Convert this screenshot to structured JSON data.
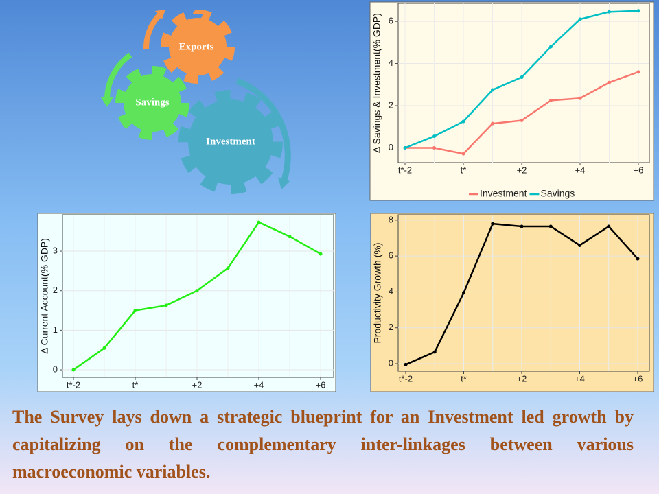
{
  "chart_data": [
    {
      "type": "line",
      "ylabel": "Δ Savings & Investment(% GDP)",
      "categories": [
        "t*-2",
        null,
        "t*",
        null,
        "+2",
        null,
        "+4",
        null,
        "+6"
      ],
      "series": [
        {
          "name": "Investment",
          "color": "#f8766d",
          "values": [
            0,
            0,
            -0.28,
            1.15,
            1.3,
            2.25,
            2.35,
            3.1,
            3.6
          ]
        },
        {
          "name": "Savings",
          "color": "#00bfc4",
          "values": [
            0,
            0.55,
            1.25,
            2.75,
            3.35,
            4.8,
            6.1,
            6.45,
            6.5
          ]
        }
      ],
      "ylim": [
        -0.7,
        6.85
      ],
      "yticks": [
        0,
        2,
        4,
        6
      ],
      "grid": true,
      "legend": "bottom",
      "background": "#fffbe8"
    },
    {
      "type": "line",
      "ylabel": "Δ Current Account(% GDP)",
      "categories": [
        "t*-2",
        null,
        "t*",
        null,
        "+2",
        null,
        "+4",
        null,
        "+6"
      ],
      "series": [
        {
          "name": "Current Account",
          "color": "#22ee11",
          "values": [
            0,
            0.55,
            1.5,
            1.63,
            2.0,
            2.57,
            3.73,
            3.37,
            2.93
          ]
        }
      ],
      "ylim": [
        -0.19,
        3.92
      ],
      "yticks": [
        0,
        1,
        2,
        3
      ],
      "grid": true,
      "background": "#f0ffff"
    },
    {
      "type": "line",
      "ylabel": "Productivity Growth (%)",
      "categories": [
        "t*-2",
        null,
        "t*",
        null,
        "+2",
        null,
        "+4",
        null,
        "+6"
      ],
      "series": [
        {
          "name": "Productivity Growth",
          "color": "#000000",
          "values": [
            -0.05,
            0.65,
            3.95,
            7.8,
            7.65,
            7.65,
            6.6,
            7.65,
            5.85
          ]
        }
      ],
      "ylim": [
        -0.42,
        8.3
      ],
      "yticks": [
        0,
        2,
        4,
        6,
        8
      ],
      "grid": true,
      "background": "#fde3a7"
    }
  ],
  "diagram": {
    "nodes": [
      {
        "label": "Exports"
      },
      {
        "label": "Savings"
      },
      {
        "label": "Investment"
      }
    ]
  },
  "caption": "The Survey lays down a strategic blueprint for an Investment led growth by capitalizing on the complementary inter-linkages between various macroeconomic variables."
}
